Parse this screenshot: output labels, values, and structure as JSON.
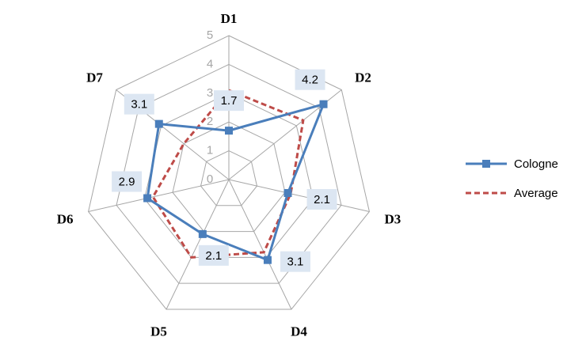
{
  "chart_data": {
    "type": "radar",
    "categories": [
      "D1",
      "D2",
      "D3",
      "D4",
      "D5",
      "D6",
      "D7"
    ],
    "series": [
      {
        "name": "Cologne",
        "color": "#4a7ebb",
        "values": [
          1.7,
          4.2,
          2.1,
          3.1,
          2.1,
          2.9,
          3.1
        ]
      },
      {
        "name": "Average",
        "color": "#be4b48",
        "values": [
          3.1,
          3.3,
          2.2,
          2.8,
          3.0,
          2.7,
          2.0
        ]
      }
    ],
    "ylim": [
      0,
      5
    ],
    "yticks": [
      0,
      1,
      2,
      3,
      4,
      5
    ],
    "grid": true,
    "legend": "right"
  }
}
